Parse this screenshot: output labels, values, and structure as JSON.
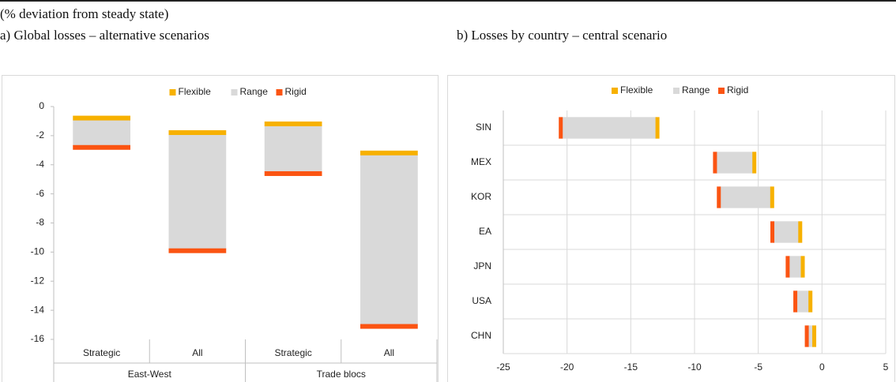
{
  "note": "(% deviation from steady state)",
  "chart_data": [
    {
      "type": "floating_bar",
      "orientation": "vertical",
      "title": "a) Global losses – alternative scenarios",
      "categories": [
        "Strategic",
        "All",
        "Strategic",
        "All"
      ],
      "groups": [
        "East-West",
        "Trade blocs"
      ],
      "range": {
        "name": "Range",
        "color": "#d9d9d9"
      },
      "series": [
        {
          "name": "Flexible",
          "color": "#f7b100",
          "values": [
            -0.9,
            -1.9,
            -1.3,
            -3.3
          ]
        },
        {
          "name": "Rigid",
          "color": "#fb5412",
          "values": [
            -2.7,
            -9.8,
            -4.5,
            -15.0
          ]
        }
      ],
      "ylim": [
        -16,
        0
      ],
      "yticks": [
        0,
        -2,
        -4,
        -6,
        -8,
        -10,
        -12,
        -14,
        -16
      ],
      "grid": false
    },
    {
      "type": "floating_bar",
      "orientation": "horizontal",
      "title": "b) Losses by country – central scenario",
      "categories": [
        "SIN",
        "MEX",
        "KOR",
        "EA",
        "JPN",
        "USA",
        "CHN"
      ],
      "range": {
        "name": "Range",
        "color": "#d9d9d9"
      },
      "series": [
        {
          "name": "Flexible",
          "color": "#f7b100",
          "values": [
            -13.0,
            -5.4,
            -4.0,
            -1.8,
            -1.6,
            -1.0,
            -0.7
          ]
        },
        {
          "name": "Rigid",
          "color": "#fb5412",
          "values": [
            -20.4,
            -8.3,
            -8.0,
            -3.8,
            -2.6,
            -2.0,
            -1.1
          ]
        }
      ],
      "xlim": [
        -25,
        5
      ],
      "xticks": [
        -25,
        -20,
        -15,
        -10,
        -5,
        0,
        5
      ],
      "grid": true
    }
  ]
}
